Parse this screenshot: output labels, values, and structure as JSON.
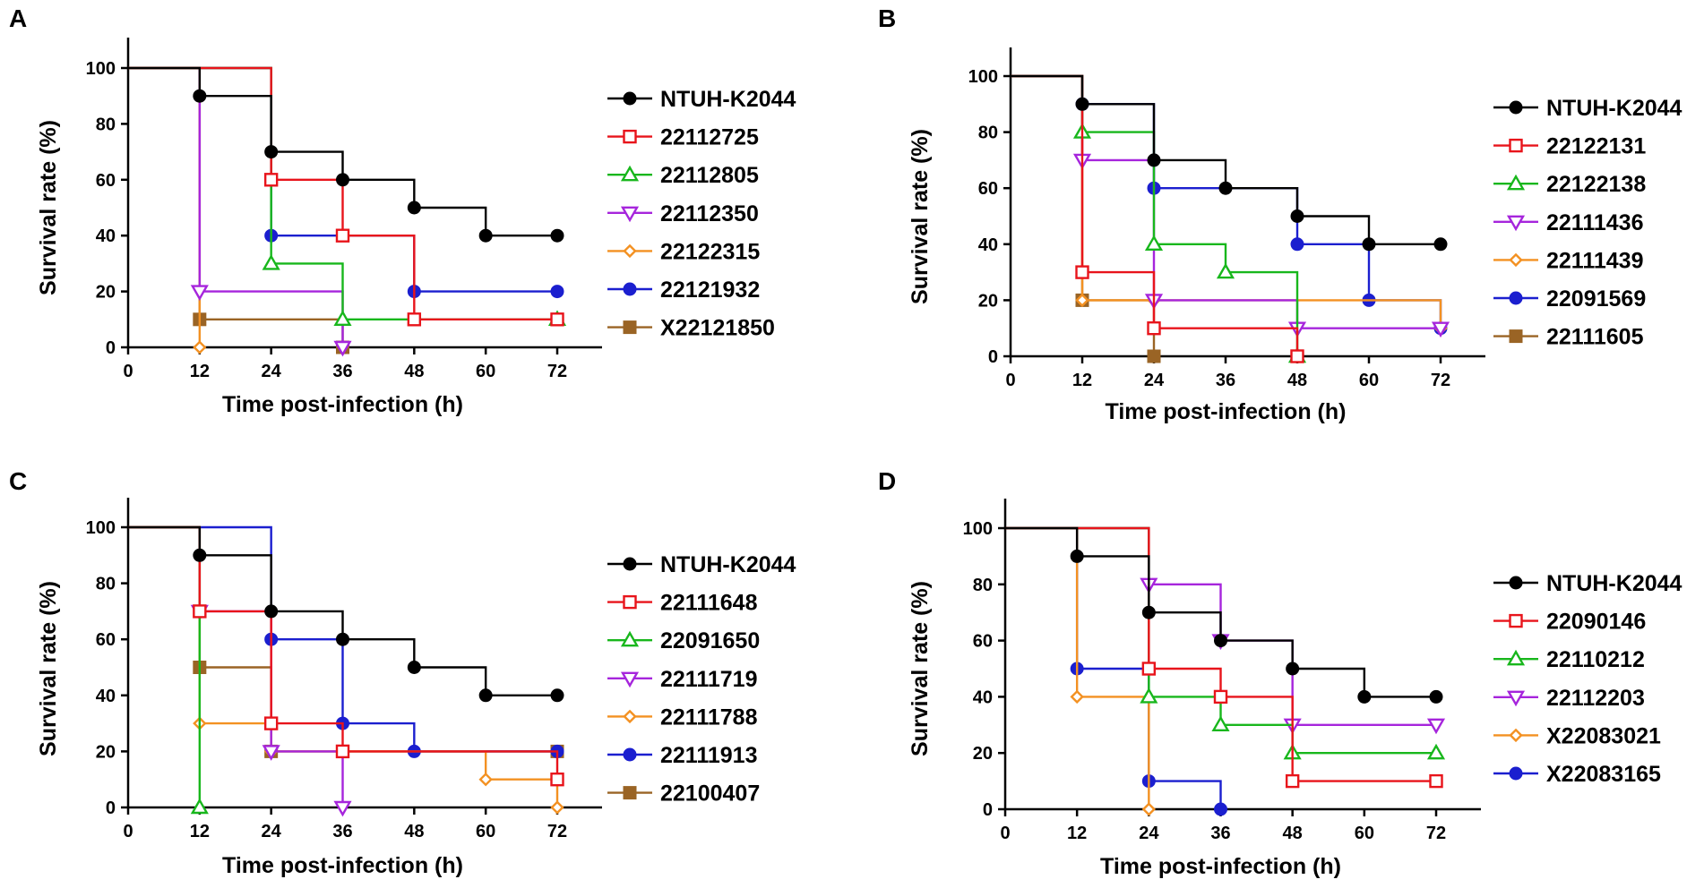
{
  "figure": {
    "panels": [
      "A",
      "B",
      "C",
      "D"
    ]
  },
  "chart_data": [
    {
      "panel": "A",
      "type": "line",
      "step": true,
      "xlabel": "Time post-infection (h)",
      "ylabel": "Survival rate (%)",
      "xlim": [
        0,
        72
      ],
      "ylim": [
        0,
        100
      ],
      "xticks": [
        0,
        12,
        24,
        36,
        48,
        60,
        72
      ],
      "yticks": [
        0,
        20,
        40,
        60,
        80,
        100
      ],
      "series": [
        {
          "name": "NTUH-K2044",
          "color": "#000000",
          "marker": "circle-filled",
          "x": [
            0,
            12,
            24,
            36,
            48,
            60,
            72
          ],
          "y": [
            100,
            90,
            70,
            60,
            50,
            40,
            40
          ]
        },
        {
          "name": "22112725",
          "color": "#e8141b",
          "marker": "square-open",
          "x": [
            0,
            24,
            36,
            48,
            72
          ],
          "y": [
            100,
            60,
            40,
            10,
            10
          ]
        },
        {
          "name": "22112805",
          "color": "#18b71c",
          "marker": "triangle-up-open",
          "x": [
            0,
            24,
            36,
            72
          ],
          "y": [
            100,
            30,
            10,
            10
          ]
        },
        {
          "name": "22112350",
          "color": "#a625dc",
          "marker": "triangle-down-open",
          "x": [
            0,
            12,
            36
          ],
          "y": [
            100,
            20,
            0
          ]
        },
        {
          "name": "22122315",
          "color": "#f39122",
          "marker": "diamond-open",
          "x": [
            0,
            12
          ],
          "y": [
            100,
            0
          ]
        },
        {
          "name": "22121932",
          "color": "#1b1fcf",
          "marker": "circle-filled",
          "x": [
            0,
            24,
            48,
            72
          ],
          "y": [
            100,
            40,
            20,
            20
          ]
        },
        {
          "name": "X22121850",
          "color": "#9a6425",
          "marker": "square-filled",
          "x": [
            0,
            12,
            36
          ],
          "y": [
            100,
            10,
            0
          ]
        }
      ]
    },
    {
      "panel": "B",
      "type": "line",
      "step": true,
      "xlabel": "Time post-infection (h)",
      "ylabel": "Survival rate (%)",
      "xlim": [
        0,
        72
      ],
      "ylim": [
        0,
        100
      ],
      "xticks": [
        0,
        12,
        24,
        36,
        48,
        60,
        72
      ],
      "yticks": [
        0,
        20,
        40,
        60,
        80,
        100
      ],
      "series": [
        {
          "name": "NTUH-K2044",
          "color": "#000000",
          "marker": "circle-filled",
          "x": [
            0,
            12,
            24,
            36,
            48,
            60,
            72
          ],
          "y": [
            100,
            90,
            70,
            60,
            50,
            40,
            40
          ]
        },
        {
          "name": "22122131",
          "color": "#e8141b",
          "marker": "square-open",
          "x": [
            0,
            12,
            24,
            48
          ],
          "y": [
            100,
            30,
            10,
            0
          ]
        },
        {
          "name": "22122138",
          "color": "#18b71c",
          "marker": "triangle-up-open",
          "x": [
            0,
            12,
            24,
            36,
            48
          ],
          "y": [
            100,
            80,
            40,
            30,
            0
          ]
        },
        {
          "name": "22111436",
          "color": "#a625dc",
          "marker": "triangle-down-open",
          "x": [
            0,
            12,
            24,
            48,
            72
          ],
          "y": [
            100,
            70,
            20,
            10,
            10
          ]
        },
        {
          "name": "22111439",
          "color": "#f39122",
          "marker": "diamond-open",
          "x": [
            0,
            12,
            24,
            72
          ],
          "y": [
            100,
            20,
            20,
            10
          ]
        },
        {
          "name": "22091569",
          "color": "#1b1fcf",
          "marker": "circle-filled",
          "x": [
            0,
            12,
            24,
            48,
            60,
            72
          ],
          "y": [
            100,
            90,
            60,
            40,
            20,
            10
          ]
        },
        {
          "name": "22111605",
          "color": "#9a6425",
          "marker": "square-filled",
          "x": [
            0,
            12,
            24
          ],
          "y": [
            100,
            20,
            0
          ]
        }
      ]
    },
    {
      "panel": "C",
      "type": "line",
      "step": true,
      "xlabel": "Time post-infection (h)",
      "ylabel": "Survival rate (%)",
      "xlim": [
        0,
        72
      ],
      "ylim": [
        0,
        100
      ],
      "xticks": [
        0,
        12,
        24,
        36,
        48,
        60,
        72
      ],
      "yticks": [
        0,
        20,
        40,
        60,
        80,
        100
      ],
      "series": [
        {
          "name": "NTUH-K2044",
          "color": "#000000",
          "marker": "circle-filled",
          "x": [
            0,
            12,
            24,
            36,
            48,
            60,
            72
          ],
          "y": [
            100,
            90,
            70,
            60,
            50,
            40,
            40
          ]
        },
        {
          "name": "22111648",
          "color": "#e8141b",
          "marker": "square-open",
          "x": [
            0,
            12,
            24,
            36,
            72
          ],
          "y": [
            100,
            70,
            30,
            20,
            10
          ]
        },
        {
          "name": "22091650",
          "color": "#18b71c",
          "marker": "triangle-up-open",
          "x": [
            0,
            12
          ],
          "y": [
            100,
            0
          ]
        },
        {
          "name": "22111719",
          "color": "#a625dc",
          "marker": "triangle-down-open",
          "x": [
            0,
            12,
            24,
            36
          ],
          "y": [
            100,
            70,
            20,
            0
          ]
        },
        {
          "name": "22111788",
          "color": "#f39122",
          "marker": "diamond-open",
          "x": [
            0,
            12,
            24,
            60,
            72
          ],
          "y": [
            100,
            30,
            20,
            10,
            0
          ]
        },
        {
          "name": "22111913",
          "color": "#1b1fcf",
          "marker": "circle-filled",
          "x": [
            0,
            24,
            36,
            48,
            72
          ],
          "y": [
            100,
            60,
            30,
            20,
            20
          ]
        },
        {
          "name": "22100407",
          "color": "#9a6425",
          "marker": "square-filled",
          "x": [
            0,
            12,
            24,
            72
          ],
          "y": [
            100,
            50,
            20,
            20
          ]
        }
      ]
    },
    {
      "panel": "D",
      "type": "line",
      "step": true,
      "xlabel": "Time post-infection (h)",
      "ylabel": "Survival rate (%)",
      "xlim": [
        0,
        72
      ],
      "ylim": [
        0,
        100
      ],
      "xticks": [
        0,
        12,
        24,
        36,
        48,
        60,
        72
      ],
      "yticks": [
        0,
        20,
        40,
        60,
        80,
        100
      ],
      "series": [
        {
          "name": "NTUH-K2044",
          "color": "#000000",
          "marker": "circle-filled",
          "x": [
            0,
            12,
            24,
            36,
            48,
            60,
            72
          ],
          "y": [
            100,
            90,
            70,
            60,
            50,
            40,
            40
          ]
        },
        {
          "name": "22090146",
          "color": "#e8141b",
          "marker": "square-open",
          "x": [
            0,
            24,
            36,
            48,
            72
          ],
          "y": [
            100,
            50,
            40,
            10,
            10
          ]
        },
        {
          "name": "22110212",
          "color": "#18b71c",
          "marker": "triangle-up-open",
          "x": [
            0,
            24,
            36,
            48,
            72
          ],
          "y": [
            100,
            40,
            30,
            20,
            20
          ]
        },
        {
          "name": "22112203",
          "color": "#a625dc",
          "marker": "triangle-down-open",
          "x": [
            0,
            24,
            36,
            48,
            72
          ],
          "y": [
            100,
            80,
            60,
            30,
            30
          ]
        },
        {
          "name": "X22083021",
          "color": "#f39122",
          "marker": "diamond-open",
          "x": [
            0,
            12,
            24
          ],
          "y": [
            100,
            40,
            0
          ]
        },
        {
          "name": "X22083165",
          "color": "#1b1fcf",
          "marker": "circle-filled",
          "x": [
            0,
            12,
            24,
            36
          ],
          "y": [
            100,
            50,
            10,
            0
          ]
        }
      ]
    }
  ]
}
